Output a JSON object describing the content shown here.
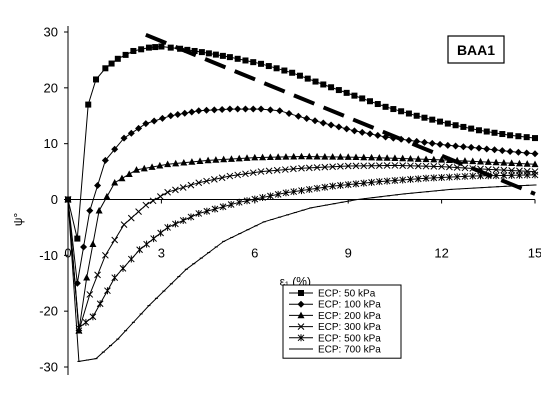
{
  "chart_data": {
    "type": "line",
    "title": "",
    "xlabel": "ε₁ (%)",
    "ylabel": "ψ°",
    "xlim": [
      0,
      15
    ],
    "ylim": [
      -30,
      30
    ],
    "xticks": [
      3,
      6,
      9,
      12,
      15
    ],
    "xtick_labels": [
      "3",
      "6",
      "9",
      "12",
      "15"
    ],
    "yticks": [
      -30,
      -20,
      -10,
      0,
      10,
      20,
      30
    ],
    "ytick_labels": [
      "-30",
      "-20",
      "-10",
      "0",
      "10",
      "20",
      "30"
    ],
    "x_origin_label": "0",
    "grid": false,
    "legend_position": "bottom-center",
    "annotation": "BAA1",
    "series": [
      {
        "name": "ECP: 50 kPa",
        "marker": "square",
        "points": [
          [
            0,
            0
          ],
          [
            0.3,
            -7
          ],
          [
            0.65,
            17
          ],
          [
            0.9,
            21.5
          ],
          [
            1.2,
            23.5
          ],
          [
            1.6,
            25.2
          ],
          [
            2.1,
            26.6
          ],
          [
            2.6,
            27.2
          ],
          [
            3.0,
            27.4
          ],
          [
            3.6,
            27.0
          ],
          [
            4.3,
            26.4
          ],
          [
            5.2,
            25.5
          ],
          [
            6.2,
            24.3
          ],
          [
            7.2,
            22.7
          ],
          [
            8.2,
            20.6
          ],
          [
            9.2,
            18.6
          ],
          [
            10.2,
            16.6
          ],
          [
            11.2,
            15.0
          ],
          [
            12.2,
            13.6
          ],
          [
            13.2,
            12.4
          ],
          [
            14.2,
            11.5
          ],
          [
            15,
            11.0
          ]
        ]
      },
      {
        "name": "ECP: 100 kPa",
        "marker": "diamond",
        "points": [
          [
            0,
            0
          ],
          [
            0.3,
            -15
          ],
          [
            0.7,
            -2
          ],
          [
            1.2,
            7
          ],
          [
            1.8,
            11
          ],
          [
            2.5,
            13.6
          ],
          [
            3.3,
            15.0
          ],
          [
            4.2,
            15.9
          ],
          [
            5.2,
            16.2
          ],
          [
            6.2,
            16.2
          ],
          [
            6.8,
            15.9
          ],
          [
            7.4,
            14.9
          ],
          [
            8.2,
            13.7
          ],
          [
            9.2,
            12.3
          ],
          [
            10.2,
            11.2
          ],
          [
            11.2,
            10.4
          ],
          [
            12.2,
            9.7
          ],
          [
            13.2,
            9.2
          ],
          [
            14.2,
            8.6
          ],
          [
            15,
            8.2
          ]
        ]
      },
      {
        "name": "ECP: 200 kPa",
        "marker": "triangle",
        "points": [
          [
            0,
            0
          ],
          [
            0.35,
            -23.5
          ],
          [
            0.6,
            -14
          ],
          [
            1.0,
            -2
          ],
          [
            1.5,
            3
          ],
          [
            2.2,
            5.3
          ],
          [
            3.2,
            6.3
          ],
          [
            4.5,
            7.0
          ],
          [
            6.0,
            7.5
          ],
          [
            7.5,
            7.7
          ],
          [
            9.0,
            7.6
          ],
          [
            10.5,
            7.4
          ],
          [
            12.0,
            7.1
          ],
          [
            13.5,
            6.7
          ],
          [
            15,
            6.3
          ]
        ]
      },
      {
        "name": "ECP: 300 kPa",
        "marker": "x",
        "points": [
          [
            0,
            0
          ],
          [
            0.35,
            -23.5
          ],
          [
            0.7,
            -17
          ],
          [
            1.2,
            -10
          ],
          [
            1.8,
            -4.5
          ],
          [
            2.5,
            -1
          ],
          [
            3.2,
            1.3
          ],
          [
            4.2,
            3.0
          ],
          [
            5.2,
            4.2
          ],
          [
            6.2,
            5.0
          ],
          [
            7.5,
            5.6
          ],
          [
            9.0,
            6.0
          ],
          [
            10.5,
            6.1
          ],
          [
            12.0,
            5.9
          ],
          [
            13.5,
            5.4
          ],
          [
            15,
            5.0
          ]
        ]
      },
      {
        "name": "ECP: 500 kPa",
        "marker": "star",
        "points": [
          [
            0,
            0
          ],
          [
            0.35,
            -23
          ],
          [
            0.8,
            -21
          ],
          [
            1.5,
            -14
          ],
          [
            2.3,
            -9
          ],
          [
            3.2,
            -5
          ],
          [
            4.2,
            -2.5
          ],
          [
            5.5,
            -0.5
          ],
          [
            7.0,
            1.2
          ],
          [
            8.5,
            2.4
          ],
          [
            10.0,
            3.2
          ],
          [
            11.5,
            3.8
          ],
          [
            13.0,
            4.2
          ],
          [
            15,
            4.4
          ]
        ]
      },
      {
        "name": "ECP: 700 kPa",
        "marker": "dash",
        "points": [
          [
            0,
            0
          ],
          [
            0.35,
            -29
          ],
          [
            0.9,
            -28.5
          ],
          [
            1.6,
            -25
          ],
          [
            2.6,
            -19
          ],
          [
            3.8,
            -12.5
          ],
          [
            5.0,
            -7.5
          ],
          [
            6.3,
            -4
          ],
          [
            7.8,
            -1.5
          ],
          [
            9.3,
            0
          ],
          [
            10.8,
            1.0
          ],
          [
            12.3,
            1.8
          ],
          [
            13.8,
            2.3
          ],
          [
            15,
            2.6
          ]
        ]
      }
    ],
    "reference_line": {
      "style": "dashed",
      "points": [
        [
          2.5,
          29.5
        ],
        [
          15,
          1.0
        ]
      ]
    }
  }
}
